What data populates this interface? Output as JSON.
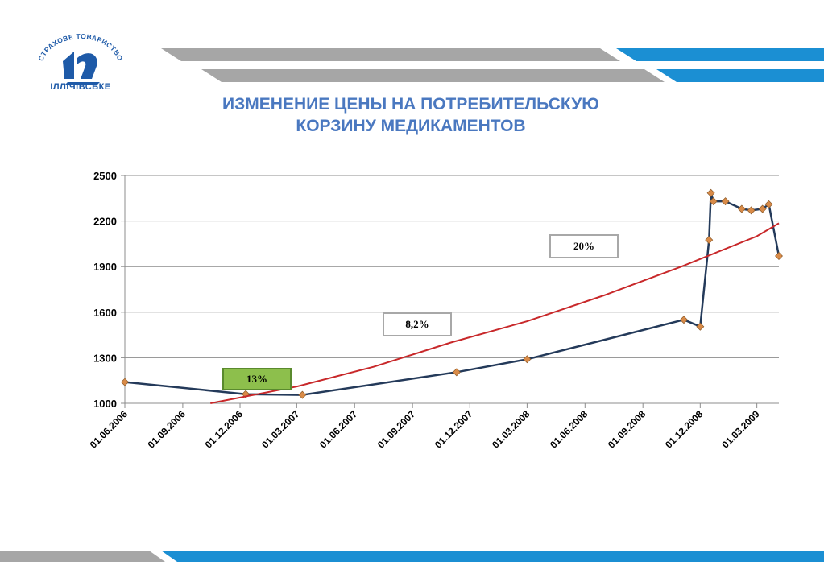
{
  "logo": {
    "arc_text": "СТРАХОВЕ ТОВАРИСТВО",
    "name": "ІЛЛІЧІВСЬКЕ",
    "colors": {
      "blue": "#1e5aa8"
    }
  },
  "title": {
    "line1": "ИЗМЕНЕНИЕ ЦЕНЫ НА ПОТРЕБИТЕЛЬСКУЮ",
    "line2": "КОРЗИНУ МЕДИКАМЕНТОВ"
  },
  "colors": {
    "stripe_gray": "#a6a6a6",
    "stripe_blue": "#1b8fd3",
    "title": "#4a78c0"
  },
  "chart_data": {
    "type": "line",
    "ylim": [
      1000,
      2500
    ],
    "yticks": [
      "2500",
      "2200",
      "1900",
      "1600",
      "1300",
      "1000"
    ],
    "xticks": [
      "01.06.2006",
      "01.09.2006",
      "01.12.2006",
      "01.03.2007",
      "01.06.2007",
      "01.09.2007",
      "01.12.2007",
      "01.03.2008",
      "01.06.2008",
      "01.09.2008",
      "01.12.2008",
      "01.03.2009"
    ],
    "grid": "horizontal",
    "series": [
      {
        "color": "#243a5a",
        "marker_color": "#d98b48",
        "points": [
          [
            "2006-06-01",
            1140
          ],
          [
            "2006-12-10",
            1060
          ],
          [
            "2007-03-10",
            1055
          ],
          [
            "2007-11-10",
            1205
          ],
          [
            "2008-03-01",
            1290
          ],
          [
            "2008-11-05",
            1550
          ],
          [
            "2008-12-01",
            1505
          ],
          [
            "2008-12-15",
            2075
          ],
          [
            "2008-12-18",
            2385
          ],
          [
            "2008-12-22",
            2330
          ],
          [
            "2009-01-10",
            2330
          ],
          [
            "2009-02-05",
            2280
          ],
          [
            "2009-02-20",
            2270
          ],
          [
            "2009-03-10",
            2280
          ],
          [
            "2009-03-20",
            2310
          ],
          [
            "2009-04-05",
            1970
          ]
        ]
      },
      {
        "type": "trend",
        "color": "#c8282a",
        "points": [
          [
            "2006-10-15",
            1000
          ],
          [
            "2007-03-01",
            1110
          ],
          [
            "2007-07-01",
            1240
          ],
          [
            "2007-11-01",
            1400
          ],
          [
            "2008-03-01",
            1540
          ],
          [
            "2008-07-01",
            1710
          ],
          [
            "2008-11-01",
            1900
          ],
          [
            "2009-03-01",
            2100
          ],
          [
            "2009-04-05",
            2185
          ]
        ]
      }
    ],
    "annotations": [
      {
        "text": "13%",
        "style": "green"
      },
      {
        "text": "8,2%",
        "style": "plain"
      },
      {
        "text": "20%",
        "style": "plain"
      }
    ]
  }
}
